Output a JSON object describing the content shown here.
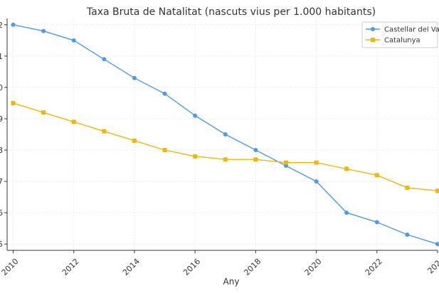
{
  "chart_data": {
    "type": "line",
    "title": "Taxa Bruta de Natalitat (nascuts vius per 1.000 habitants)",
    "xlabel": "Any",
    "ylabel": "",
    "x": [
      2010,
      2011,
      2012,
      2013,
      2014,
      2015,
      2016,
      2017,
      2018,
      2019,
      2020,
      2021,
      2022,
      2023,
      2024
    ],
    "x_tick_labels": [
      "2010",
      "2012",
      "2014",
      "2016",
      "2018",
      "2020",
      "2022",
      "202"
    ],
    "y_tick_labels": [
      "2",
      "1",
      "0",
      "9",
      "8",
      "7",
      "6",
      "5"
    ],
    "xlim": [
      2009.8,
      2024.0
    ],
    "ylim": [
      4.8,
      12.2
    ],
    "grid": true,
    "legend_position": "top-right",
    "series": [
      {
        "name": "Castellar del Va",
        "color": "#4C9BE8",
        "marker": "circle",
        "values": [
          12.0,
          11.8,
          11.5,
          10.9,
          10.3,
          9.8,
          9.1,
          8.5,
          8.0,
          7.5,
          7.0,
          6.0,
          5.7,
          5.3,
          5.0
        ]
      },
      {
        "name": "Catalunya",
        "color": "#F2B705",
        "marker": "square",
        "values": [
          9.5,
          9.2,
          8.9,
          8.6,
          8.3,
          8.0,
          7.8,
          7.7,
          7.7,
          7.6,
          7.6,
          7.4,
          7.2,
          6.8,
          6.7
        ]
      }
    ]
  }
}
